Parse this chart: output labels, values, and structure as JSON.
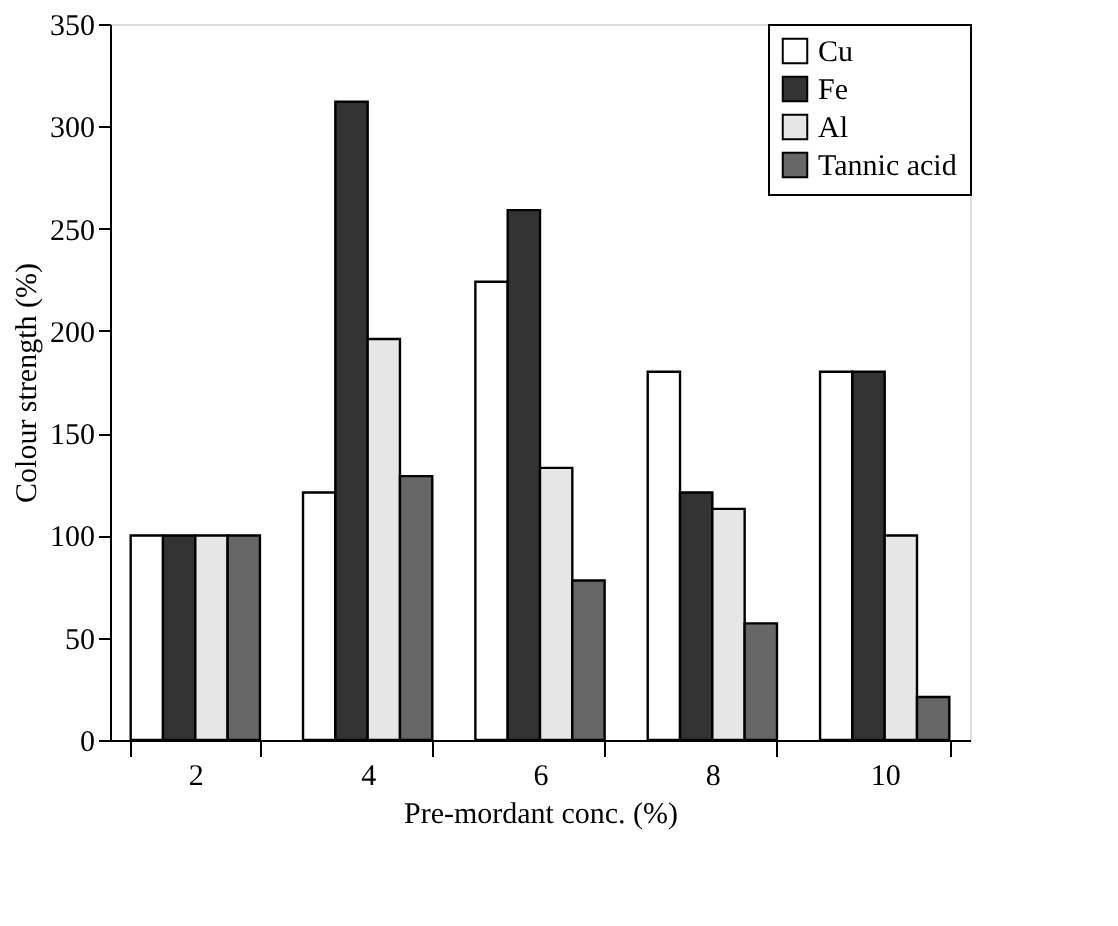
{
  "chart_data": {
    "type": "bar",
    "xlabel": "Pre-mordant conc. (%)",
    "ylabel": "Colour strength (%)",
    "categories": [
      "2",
      "4",
      "6",
      "8",
      "10"
    ],
    "series": [
      {
        "name": "Cu",
        "color": "#ffffff",
        "values": [
          100,
          121,
          224,
          180,
          180
        ]
      },
      {
        "name": "Fe",
        "color": "#333333",
        "values": [
          100,
          312,
          259,
          121,
          180
        ]
      },
      {
        "name": "Al",
        "color": "#e6e6e6",
        "values": [
          100,
          196,
          133,
          113,
          100
        ]
      },
      {
        "name": "Tannic acid",
        "color": "#666666",
        "values": [
          100,
          129,
          78,
          57,
          21
        ]
      }
    ],
    "ylim": [
      0,
      350
    ],
    "yticks": [
      0,
      50,
      100,
      150,
      200,
      250,
      300,
      350
    ],
    "grid": false,
    "legend": "top right"
  }
}
